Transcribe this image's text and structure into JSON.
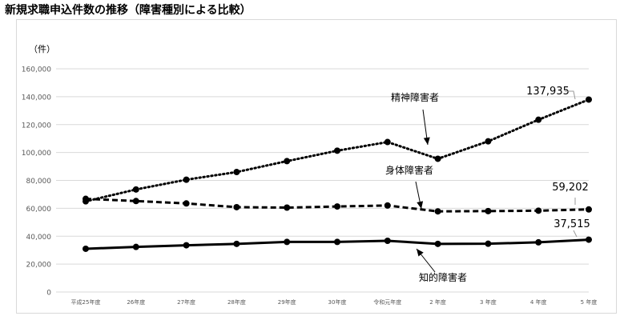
{
  "chart_data": {
    "type": "line",
    "title": "新規求職申込件数の推移（障害種別による比較）",
    "ylabel": "（件）",
    "ylim": [
      0,
      160000
    ],
    "yticks": [
      {
        "value": 0,
        "label": "0"
      },
      {
        "value": 20000,
        "label": "20,000"
      },
      {
        "value": 40000,
        "label": "40,000"
      },
      {
        "value": 60000,
        "label": "60,000"
      },
      {
        "value": 80000,
        "label": "80,000"
      },
      {
        "value": 100000,
        "label": "100,000"
      },
      {
        "value": 120000,
        "label": "120,000"
      },
      {
        "value": 140000,
        "label": "140,000"
      },
      {
        "value": 160000,
        "label": "160,000"
      }
    ],
    "categories": [
      "平成25年度",
      "26年度",
      "27年度",
      "28年度",
      "29年度",
      "30年度",
      "令和元年度",
      "2 年度",
      "3 年度",
      "4 年度",
      "5 年度"
    ],
    "grid": true,
    "series": [
      {
        "name": "精神障害者",
        "style": "dotted",
        "values": [
          65000,
          73500,
          80500,
          86000,
          93800,
          101300,
          107500,
          95500,
          108000,
          123500,
          137935
        ]
      },
      {
        "name": "身体障害者",
        "style": "dashed",
        "values": [
          66800,
          65200,
          63500,
          60800,
          60500,
          61300,
          62000,
          57800,
          58000,
          58300,
          59202
        ]
      },
      {
        "name": "知的障害者",
        "style": "solid",
        "values": [
          31000,
          32300,
          33500,
          34500,
          35900,
          35900,
          36700,
          34500,
          34600,
          35600,
          37515
        ]
      }
    ],
    "data_labels": [
      "137,935",
      "59,202",
      "37,515"
    ],
    "line_color": "#000000",
    "grid_color": "#d9d9d9"
  }
}
